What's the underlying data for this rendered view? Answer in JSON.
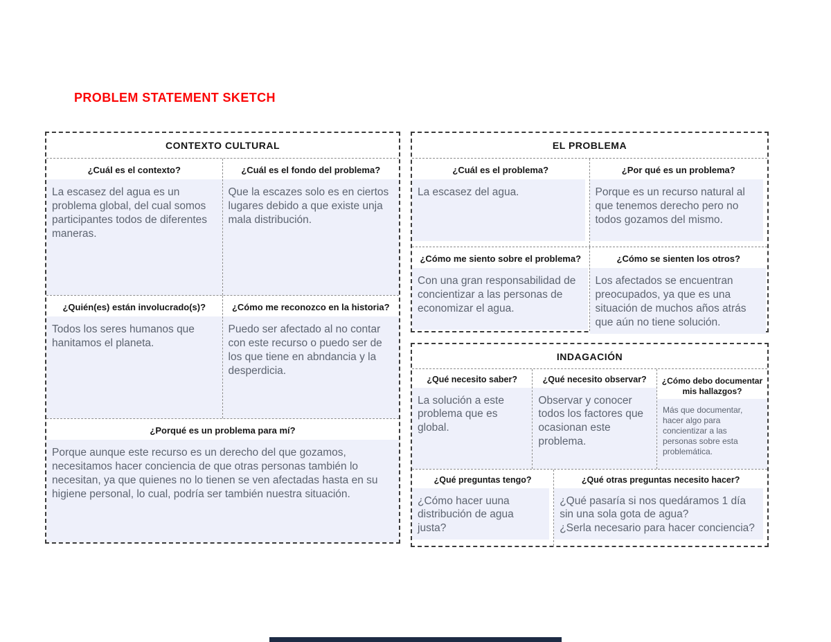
{
  "page": {
    "title": "PROBLEM STATEMENT SKETCH",
    "title_color": "#fb0505"
  },
  "colors": {
    "answer_background": "#eef0fa",
    "answer_text": "#5d6470",
    "border_dashed": "#3a3a3a",
    "inner_border_dashed": "#8d8d8d",
    "bottom_bar": "#1d2b44"
  },
  "panels": {
    "contexto": {
      "header": "CONTEXTO CULTURAL",
      "cells": [
        {
          "q": "¿Cuál es el contexto?",
          "a": "La escasez del agua es un problema global, del cual somos participantes todos de diferentes maneras."
        },
        {
          "q": "¿Cuál es el fondo del problema?",
          "a": "Que la escazes solo es en ciertos lugares debido a que existe unja mala distribución."
        },
        {
          "q": "¿Quién(es) están involucrado(s)?",
          "a": "Todos los seres humanos que hanitamos el planeta."
        },
        {
          "q": "¿Cómo me reconozco en la historia?",
          "a": "Puedo ser afectado al no contar con este recurso o puedo ser de los que tiene en abndancia y la desperdicia."
        },
        {
          "q": "¿Porqué es un problema para mí?",
          "a": "Porque aunque este recurso es un derecho del que gozamos, necesitamos hacer conciencia de que otras personas también lo necesitan, ya que quienes no lo tienen se ven afectadas hasta en su higiene personal, lo cual, podría ser también nuestra situación."
        }
      ]
    },
    "problema": {
      "header": "EL PROBLEMA",
      "cells": [
        {
          "q": "¿Cuál es el problema?",
          "a": "La escasez del agua."
        },
        {
          "q": "¿Por qué es un problema?",
          "a": "Porque es un recurso natural al que tenemos derecho pero no todos gozamos del mismo."
        },
        {
          "q": "¿Cómo me siento sobre el problema?",
          "a": "Con una gran responsabilidad de concientizar a las personas de economizar el agua."
        },
        {
          "q": "¿Cómo se sienten los otros?",
          "a": "Los afectados se encuentran preocupados, ya que es una situación de muchos años atrás que aún no tiene solución."
        }
      ]
    },
    "indagacion": {
      "header": "INDAGACIÓN",
      "cells": [
        {
          "q": "¿Qué necesito saber?",
          "a": "La solución a este problema que es global."
        },
        {
          "q": "¿Qué necesito observar?",
          "a": "Observar y conocer todos los factores que ocasionan este problema."
        },
        {
          "q": "¿Cómo debo documentar mis hallazgos?",
          "a": "Más que documentar, hacer algo para concientizar a las personas sobre esta problemática."
        },
        {
          "q": "¿Qué preguntas tengo?",
          "a": "¿Cómo hacer uuna distribución de agua justa?"
        },
        {
          "q": "¿Qué otras preguntas necesito hacer?",
          "a": "¿Qué pasaría si nos quedáramos 1 día sin una sola gota de agua?\n¿Serla necesario para hacer conciencia?"
        }
      ]
    }
  }
}
